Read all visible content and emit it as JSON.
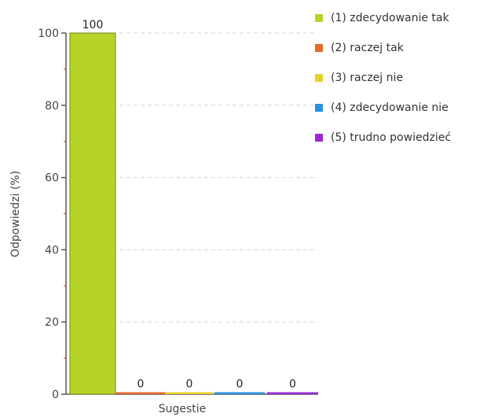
{
  "chart_data": {
    "type": "bar",
    "xlabel": "Sugestie",
    "ylabel": "Odpowiedzi (%)",
    "ylim": [
      0,
      100
    ],
    "yticks": [
      0,
      20,
      40,
      60,
      80,
      100
    ],
    "grid": true,
    "legend_position": "top-right",
    "series": [
      {
        "name": "(1) zdecydowanie tak",
        "value": 100,
        "color": "#b7d327"
      },
      {
        "name": "(2) raczej tak",
        "value": 0,
        "color": "#e56a2a"
      },
      {
        "name": "(3) raczej nie",
        "value": 0,
        "color": "#e7d02a"
      },
      {
        "name": "(4) zdecydowanie nie",
        "value": 0,
        "color": "#2a8fe0"
      },
      {
        "name": "(5) trudno powiedzieć",
        "value": 0,
        "color": "#9b2ad9"
      }
    ]
  }
}
